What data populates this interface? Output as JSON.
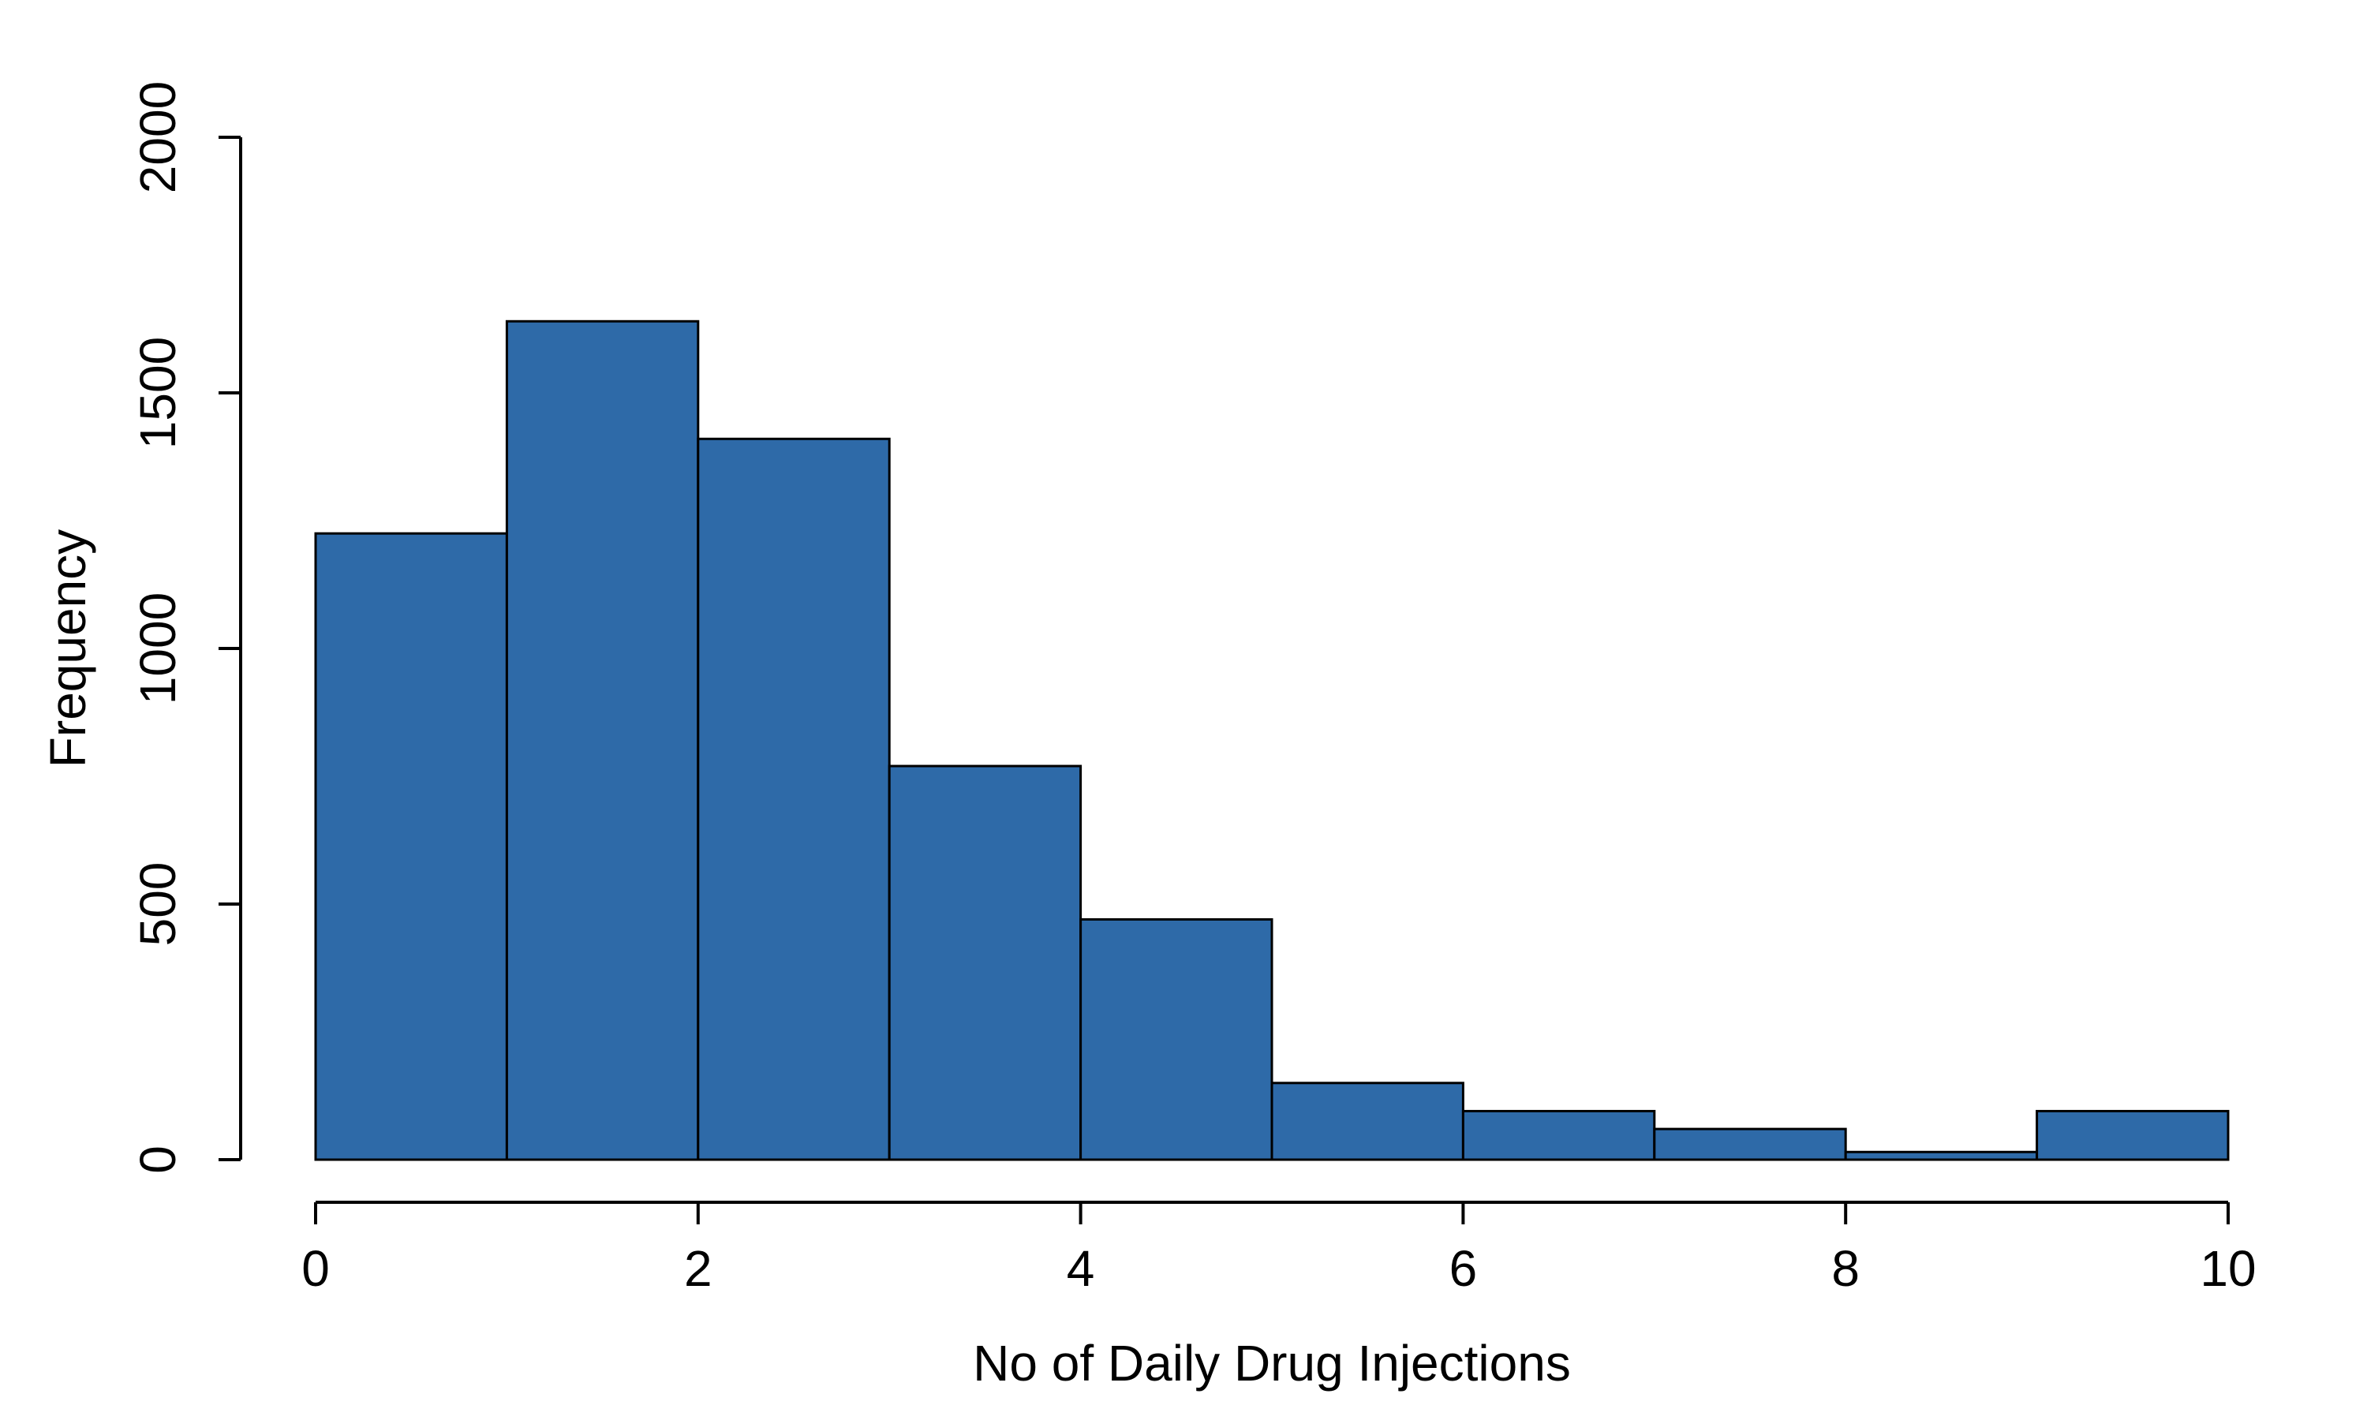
{
  "chart_data": {
    "type": "bar",
    "subtype": "histogram",
    "title": "",
    "xlabel": "No of Daily Drug Injections",
    "ylabel": "Frequency",
    "bin_edges": [
      0,
      1,
      2,
      3,
      4,
      5,
      6,
      7,
      8,
      9,
      10
    ],
    "values": [
      1225,
      1640,
      1410,
      770,
      470,
      150,
      95,
      60,
      15,
      95
    ],
    "xlim": [
      0,
      10
    ],
    "ylim": [
      0,
      2000
    ],
    "x_ticks": [
      0,
      2,
      4,
      6,
      8,
      10
    ],
    "x_tick_labels": [
      "0",
      "2",
      "4",
      "6",
      "8",
      "10"
    ],
    "y_ticks": [
      0,
      500,
      1000,
      1500,
      2000
    ],
    "y_tick_labels": [
      "0",
      "500",
      "1000",
      "1500",
      "2000"
    ],
    "grid": false,
    "legend": "none",
    "colors": {
      "bar_fill": "#2e6aa8",
      "bar_edge": "#000000",
      "axis": "#000000",
      "background": "#ffffff"
    }
  }
}
